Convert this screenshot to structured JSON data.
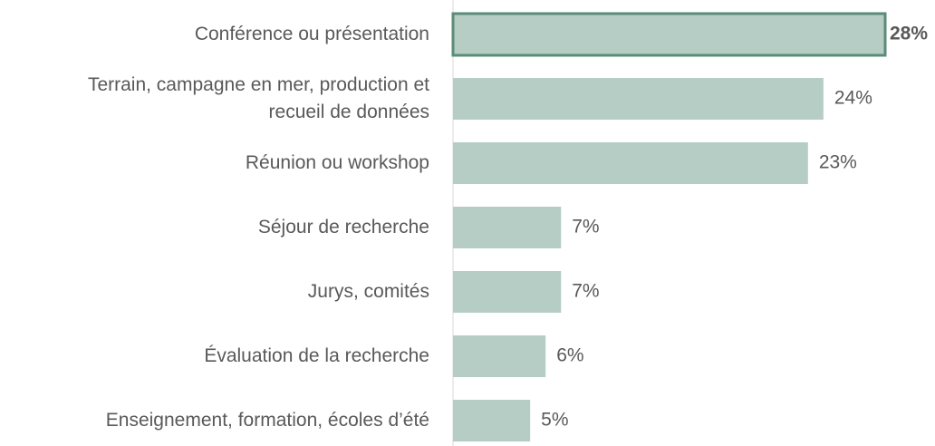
{
  "chart_data": {
    "type": "barh",
    "categories": [
      "Conférence ou présentation",
      "Terrain, campagne en mer, production et\nrecueil de données",
      "Réunion ou workshop",
      "Séjour de recherche",
      "Jurys, comités",
      "Évaluation de la recherche",
      "Enseignement, formation, écoles d’été"
    ],
    "values": [
      28,
      24,
      23,
      7,
      7,
      6,
      5
    ],
    "value_labels": [
      "28%",
      "24%",
      "23%",
      "7%",
      "7%",
      "6%",
      "5%"
    ],
    "color": "#b5cdc4",
    "highlight_color": "#5b8c78",
    "highlight_index": 0,
    "xlim": [
      0,
      28
    ]
  }
}
